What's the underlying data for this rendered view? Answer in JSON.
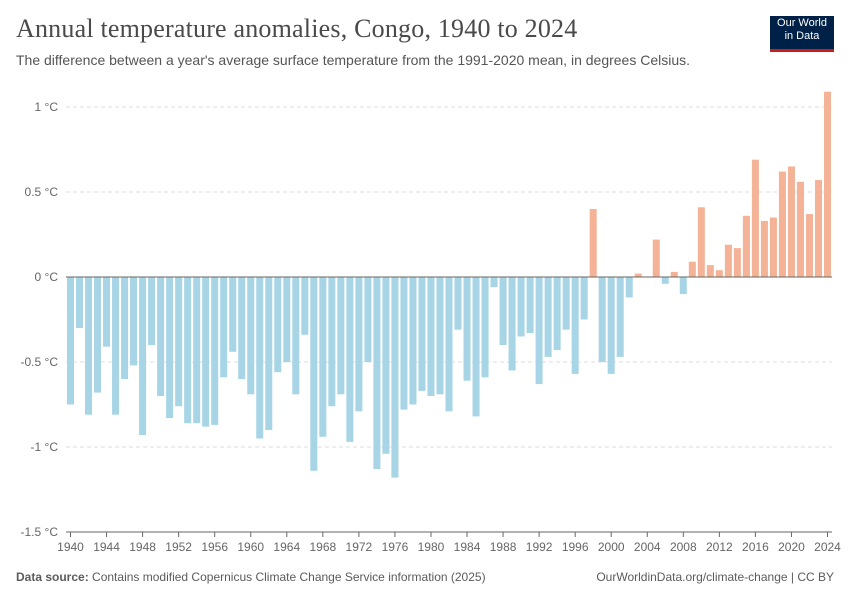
{
  "header": {
    "title": "Annual temperature anomalies, Congo, 1940 to 2024",
    "subtitle": "The difference between a year's average surface temperature from the 1991-2020 mean, in degrees Celsius."
  },
  "logo": {
    "line1": "Our World",
    "line2": "in Data",
    "bg_color": "#002147",
    "accent_color": "#c71e1d"
  },
  "footer": {
    "source_label": "Data source:",
    "source_text": "Contains modified Copernicus Climate Change Service information (2025)",
    "right_text": "OurWorldinData.org/climate-change | CC BY"
  },
  "chart_data": {
    "type": "bar",
    "x": [
      1940,
      1941,
      1942,
      1943,
      1944,
      1945,
      1946,
      1947,
      1948,
      1949,
      1950,
      1951,
      1952,
      1953,
      1954,
      1955,
      1956,
      1957,
      1958,
      1959,
      1960,
      1961,
      1962,
      1963,
      1964,
      1965,
      1966,
      1967,
      1968,
      1969,
      1970,
      1971,
      1972,
      1973,
      1974,
      1975,
      1976,
      1977,
      1978,
      1979,
      1980,
      1981,
      1982,
      1983,
      1984,
      1985,
      1986,
      1987,
      1988,
      1989,
      1990,
      1991,
      1992,
      1993,
      1994,
      1995,
      1996,
      1997,
      1998,
      1999,
      2000,
      2001,
      2002,
      2003,
      2004,
      2005,
      2006,
      2007,
      2008,
      2009,
      2010,
      2011,
      2012,
      2013,
      2014,
      2015,
      2016,
      2017,
      2018,
      2019,
      2020,
      2021,
      2022,
      2023,
      2024
    ],
    "values": [
      -0.75,
      -0.3,
      -0.81,
      -0.68,
      -0.41,
      -0.81,
      -0.6,
      -0.52,
      -0.93,
      -0.4,
      -0.7,
      -0.83,
      -0.76,
      -0.86,
      -0.86,
      -0.88,
      -0.87,
      -0.59,
      -0.44,
      -0.6,
      -0.69,
      -0.95,
      -0.9,
      -0.56,
      -0.5,
      -0.69,
      -0.34,
      -1.14,
      -0.94,
      -0.76,
      -0.69,
      -0.97,
      -0.79,
      -0.5,
      -1.13,
      -1.04,
      -1.18,
      -0.78,
      -0.75,
      -0.67,
      -0.7,
      -0.69,
      -0.79,
      -0.31,
      -0.61,
      -0.82,
      -0.59,
      -0.06,
      -0.4,
      -0.55,
      -0.35,
      -0.33,
      -0.63,
      -0.47,
      -0.43,
      -0.31,
      -0.57,
      -0.25,
      0.4,
      -0.5,
      -0.57,
      -0.47,
      -0.12,
      0.02,
      0.0,
      0.22,
      -0.04,
      0.03,
      -0.1,
      0.09,
      0.41,
      0.07,
      0.04,
      0.19,
      0.17,
      0.36,
      0.69,
      0.33,
      0.35,
      0.62,
      0.65,
      0.56,
      0.37,
      0.57,
      1.09
    ],
    "ylim": [
      -1.5,
      1.1
    ],
    "y_ticks": [
      1,
      0.5,
      0,
      -0.5,
      -1,
      -1.5
    ],
    "y_tick_labels": [
      "1 °C",
      "0.5 °C",
      "0 °C",
      "-0.5 °C",
      "-1 °C",
      "-1.5 °C"
    ],
    "x_ticks": [
      1940,
      1944,
      1948,
      1952,
      1956,
      1960,
      1964,
      1968,
      1972,
      1976,
      1980,
      1984,
      1988,
      1992,
      1996,
      2000,
      2004,
      2008,
      2012,
      2016,
      2020,
      2024
    ],
    "colors": {
      "positive": "#f4b397",
      "negative": "#a8d5e6",
      "grid": "#dddddd",
      "axis": "#666666",
      "label": "#666666"
    },
    "grid": true
  }
}
